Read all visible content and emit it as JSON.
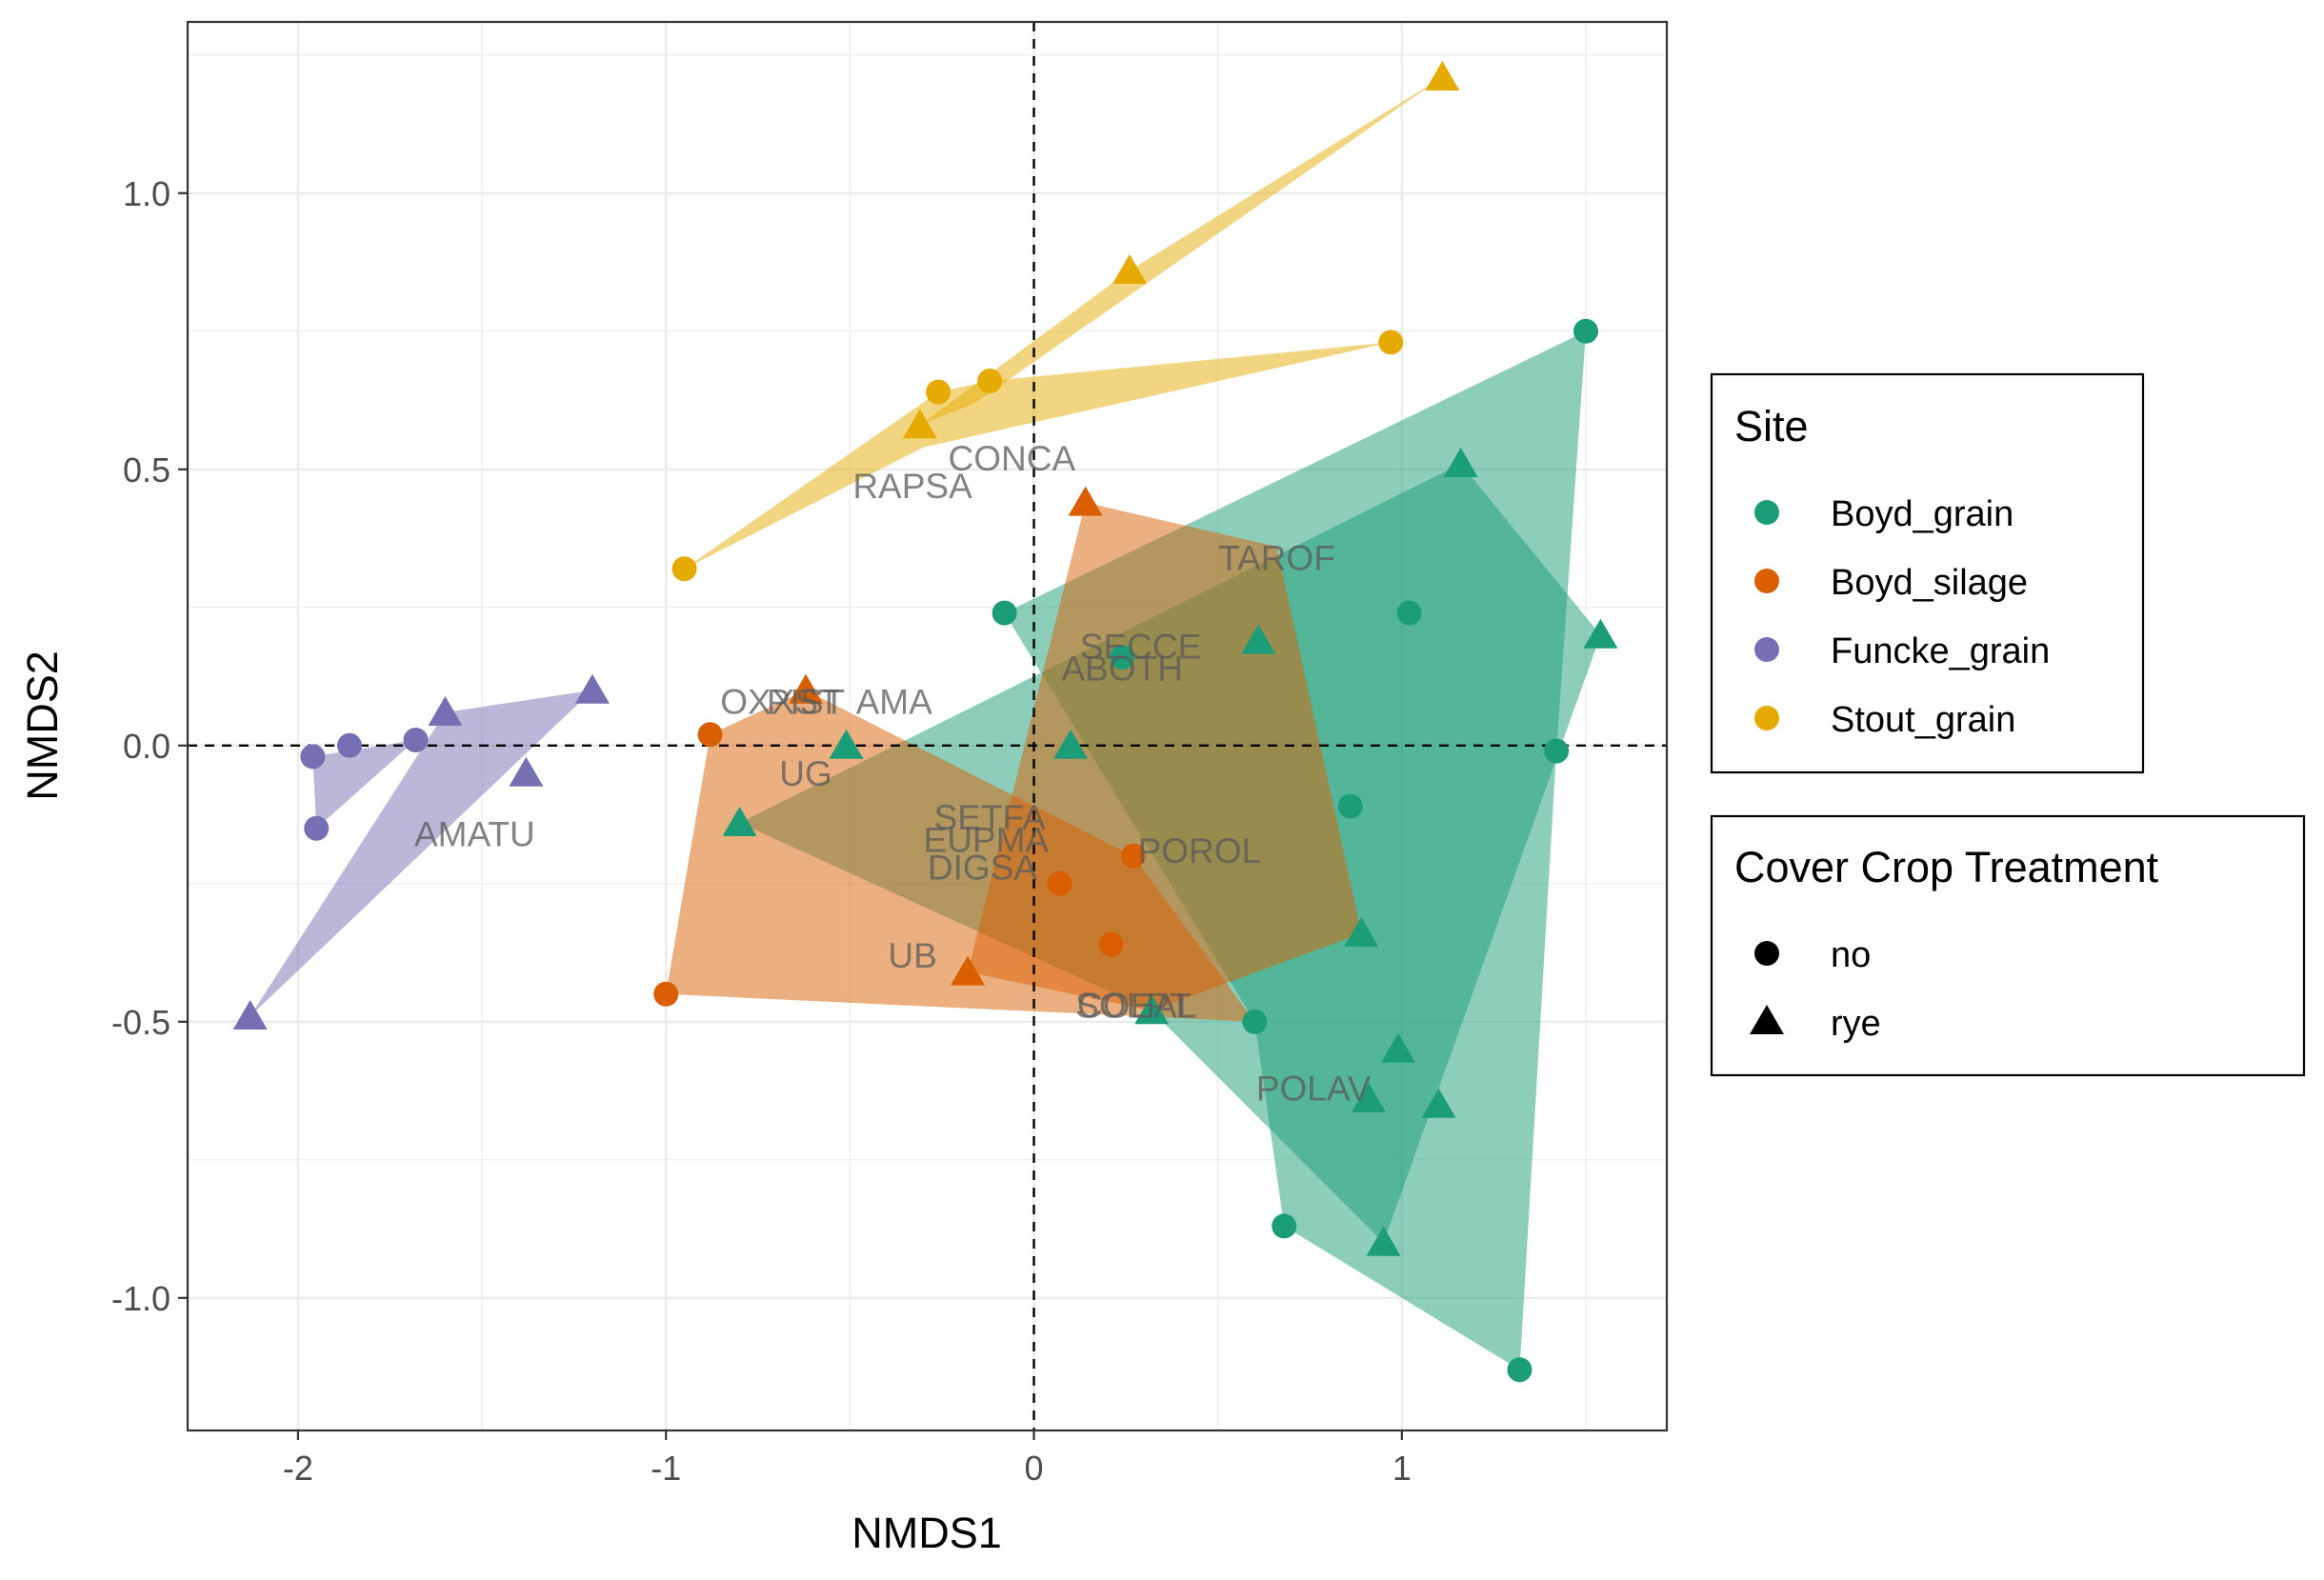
{
  "chart_data": {
    "type": "scatter",
    "title": "",
    "xlabel": "NMDS1",
    "ylabel": "NMDS2",
    "xlim": [
      -2.3,
      1.72
    ],
    "ylim": [
      -1.24,
      1.31
    ],
    "x_ticks": [
      -2,
      -1,
      0,
      1
    ],
    "y_ticks": [
      -1.0,
      -0.5,
      0.0,
      0.5,
      1.0
    ],
    "x_tick_labels": [
      "-2",
      "-1",
      "0",
      "1"
    ],
    "y_tick_labels": [
      "-1.0",
      "-0.5",
      "0.0",
      "0.5",
      "1.0"
    ],
    "grid": true,
    "reference_lines": [
      {
        "axis": "x",
        "value": 0,
        "style": "dashed"
      },
      {
        "axis": "y",
        "value": 0,
        "style": "dashed"
      }
    ],
    "legends": [
      {
        "title": "Site",
        "entries": [
          {
            "label": "Boyd_grain",
            "color": "#1b9e77"
          },
          {
            "label": "Boyd_silage",
            "color": "#d95f02"
          },
          {
            "label": "Funcke_grain",
            "color": "#7570b3"
          },
          {
            "label": "Stout_grain",
            "color": "#e6ab02"
          }
        ]
      },
      {
        "title": "Cover Crop Treatment",
        "entries": [
          {
            "label": "no",
            "shape": "circle"
          },
          {
            "label": "rye",
            "shape": "triangle"
          }
        ]
      }
    ],
    "legend_position": "right",
    "series": [
      {
        "name": "Boyd_grain",
        "color": "#1b9e77",
        "points": [
          {
            "x": 1.5,
            "y": 0.75,
            "shape": "circle"
          },
          {
            "x": -0.08,
            "y": 0.24,
            "shape": "circle"
          },
          {
            "x": 1.02,
            "y": 0.24,
            "shape": "circle"
          },
          {
            "x": 0.24,
            "y": 0.16,
            "shape": "circle"
          },
          {
            "x": 1.42,
            "y": -0.01,
            "shape": "circle"
          },
          {
            "x": 0.86,
            "y": -0.11,
            "shape": "circle"
          },
          {
            "x": 0.6,
            "y": -0.5,
            "shape": "circle"
          },
          {
            "x": 0.68,
            "y": -0.87,
            "shape": "circle"
          },
          {
            "x": 1.32,
            "y": -1.13,
            "shape": "circle"
          },
          {
            "x": 1.16,
            "y": 0.51,
            "shape": "triangle"
          },
          {
            "x": 1.54,
            "y": 0.2,
            "shape": "triangle"
          },
          {
            "x": 0.61,
            "y": 0.19,
            "shape": "triangle"
          },
          {
            "x": 0.1,
            "y": 0.0,
            "shape": "triangle"
          },
          {
            "x": -0.51,
            "y": 0.0,
            "shape": "triangle"
          },
          {
            "x": -0.8,
            "y": -0.14,
            "shape": "triangle"
          },
          {
            "x": 0.89,
            "y": -0.34,
            "shape": "triangle"
          },
          {
            "x": 0.32,
            "y": -0.48,
            "shape": "triangle"
          },
          {
            "x": 0.99,
            "y": -0.55,
            "shape": "triangle"
          },
          {
            "x": 0.91,
            "y": -0.64,
            "shape": "triangle"
          },
          {
            "x": 1.1,
            "y": -0.65,
            "shape": "triangle"
          },
          {
            "x": 0.95,
            "y": -0.9,
            "shape": "triangle"
          }
        ],
        "hulls": {
          "no": [
            [
              1.5,
              0.75
            ],
            [
              1.42,
              -0.01
            ],
            [
              1.32,
              -1.13
            ],
            [
              0.68,
              -0.87
            ],
            [
              0.6,
              -0.5
            ],
            [
              -0.08,
              0.24
            ]
          ],
          "rye": [
            [
              1.16,
              0.51
            ],
            [
              1.54,
              0.2
            ],
            [
              0.95,
              -0.9
            ],
            [
              0.32,
              -0.48
            ],
            [
              -0.8,
              -0.14
            ]
          ]
        }
      },
      {
        "name": "Boyd_silage",
        "color": "#d95f02",
        "points": [
          {
            "x": -0.88,
            "y": 0.02,
            "shape": "circle"
          },
          {
            "x": -1.0,
            "y": -0.45,
            "shape": "circle"
          },
          {
            "x": 0.07,
            "y": -0.25,
            "shape": "circle"
          },
          {
            "x": 0.27,
            "y": -0.2,
            "shape": "circle"
          },
          {
            "x": 0.21,
            "y": -0.36,
            "shape": "circle"
          },
          {
            "x": 0.14,
            "y": 0.44,
            "shape": "triangle"
          },
          {
            "x": -0.62,
            "y": 0.1,
            "shape": "triangle"
          },
          {
            "x": -0.18,
            "y": -0.41,
            "shape": "triangle"
          }
        ],
        "hulls": {
          "no": [
            [
              -0.88,
              0.02
            ],
            [
              -0.62,
              0.1
            ],
            [
              0.27,
              -0.2
            ],
            [
              0.6,
              -0.5
            ],
            [
              -1.0,
              -0.45
            ]
          ],
          "rye": [
            [
              0.14,
              0.44
            ],
            [
              0.66,
              0.36
            ],
            [
              0.89,
              -0.34
            ],
            [
              0.32,
              -0.48
            ],
            [
              -0.18,
              -0.41
            ]
          ]
        }
      },
      {
        "name": "Funcke_grain",
        "color": "#7570b3",
        "points": [
          {
            "x": -1.96,
            "y": -0.02,
            "shape": "circle"
          },
          {
            "x": -1.86,
            "y": 0.0,
            "shape": "circle"
          },
          {
            "x": -1.68,
            "y": 0.01,
            "shape": "circle"
          },
          {
            "x": -1.95,
            "y": -0.15,
            "shape": "circle"
          },
          {
            "x": -1.2,
            "y": 0.1,
            "shape": "triangle"
          },
          {
            "x": -1.6,
            "y": 0.06,
            "shape": "triangle"
          },
          {
            "x": -1.38,
            "y": -0.05,
            "shape": "triangle"
          },
          {
            "x": -2.13,
            "y": -0.49,
            "shape": "triangle"
          }
        ],
        "hulls": {
          "no": [
            [
              -1.96,
              -0.02
            ],
            [
              -1.68,
              0.01
            ],
            [
              -1.95,
              -0.15
            ]
          ],
          "rye": [
            [
              -1.2,
              0.1
            ],
            [
              -1.6,
              0.06
            ],
            [
              -2.13,
              -0.49
            ]
          ]
        }
      },
      {
        "name": "Stout_grain",
        "color": "#e6ab02",
        "points": [
          {
            "x": 0.97,
            "y": 0.73,
            "shape": "circle"
          },
          {
            "x": -0.12,
            "y": 0.66,
            "shape": "circle"
          },
          {
            "x": -0.26,
            "y": 0.64,
            "shape": "circle"
          },
          {
            "x": -0.95,
            "y": 0.32,
            "shape": "circle"
          },
          {
            "x": 1.11,
            "y": 1.21,
            "shape": "triangle"
          },
          {
            "x": 0.26,
            "y": 0.86,
            "shape": "triangle"
          },
          {
            "x": -0.31,
            "y": 0.58,
            "shape": "triangle"
          }
        ],
        "hulls": {
          "no": [
            [
              0.97,
              0.73
            ],
            [
              -0.12,
              0.66
            ],
            [
              -0.26,
              0.64
            ],
            [
              -0.95,
              0.32
            ],
            [
              -0.3,
              0.54
            ]
          ],
          "rye": [
            [
              1.11,
              1.21
            ],
            [
              0.26,
              0.86
            ],
            [
              -0.31,
              0.58
            ],
            [
              -0.16,
              0.62
            ]
          ]
        }
      }
    ],
    "species_labels": [
      {
        "text": "CONCA",
        "x": -0.06,
        "y": 0.52
      },
      {
        "text": "RAPSA",
        "x": -0.33,
        "y": 0.47
      },
      {
        "text": "TAROF",
        "x": 0.66,
        "y": 0.34
      },
      {
        "text": "SECCE",
        "x": 0.29,
        "y": 0.18
      },
      {
        "text": "ABOTH",
        "x": 0.24,
        "y": 0.14
      },
      {
        "text": "OXXST",
        "x": -0.69,
        "y": 0.08
      },
      {
        "text": "AMA",
        "x": -0.38,
        "y": 0.08
      },
      {
        "text": "PIST",
        "x": -0.62,
        "y": 0.08
      },
      {
        "text": "UG",
        "x": -0.62,
        "y": -0.05
      },
      {
        "text": "AMATU",
        "x": -1.52,
        "y": -0.16
      },
      {
        "text": "SETFA",
        "x": -0.12,
        "y": -0.13
      },
      {
        "text": "EUPMA",
        "x": -0.13,
        "y": -0.17
      },
      {
        "text": "POROL",
        "x": 0.45,
        "y": -0.19
      },
      {
        "text": "DIGSA",
        "x": -0.14,
        "y": -0.22
      },
      {
        "text": "UB",
        "x": -0.33,
        "y": -0.38
      },
      {
        "text": "COEAL",
        "x": 0.28,
        "y": -0.47
      },
      {
        "text": "SOLPT",
        "x": 0.27,
        "y": -0.47
      },
      {
        "text": "POLAV",
        "x": 0.76,
        "y": -0.62
      }
    ]
  }
}
